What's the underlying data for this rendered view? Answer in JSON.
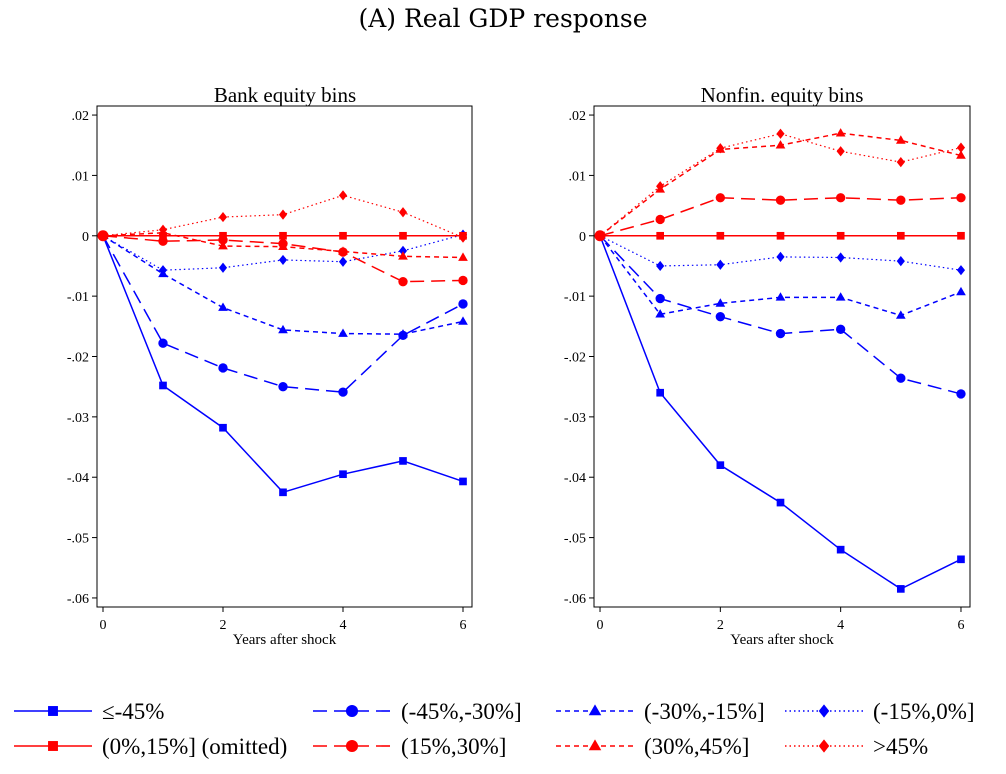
{
  "figure_title": "(A) Real GDP response",
  "chart_data": [
    {
      "type": "line",
      "title": "Bank equity bins",
      "xlabel": "Years after shock",
      "ylabel": "",
      "x": [
        0,
        1,
        2,
        3,
        4,
        5,
        6
      ],
      "xticks": [
        0,
        2,
        4,
        6
      ],
      "yticks": [
        0.02,
        0.01,
        0,
        -0.01,
        -0.02,
        -0.03,
        -0.04,
        -0.05,
        -0.06
      ],
      "ytick_labels": [
        ".02",
        ".01",
        "0",
        "-.01",
        "-.02",
        "-.03",
        "-.04",
        "-.05",
        "-.06"
      ],
      "xlim": [
        -0.1,
        6.15
      ],
      "ylim": [
        -0.0615,
        0.0215
      ],
      "series": [
        {
          "name": "≤-45%",
          "values": [
            0,
            -0.0248,
            -0.0318,
            -0.0425,
            -0.0395,
            -0.0373,
            -0.0407
          ]
        },
        {
          "name": "(-45%,-30%]",
          "values": [
            0,
            -0.0178,
            -0.0219,
            -0.025,
            -0.0259,
            -0.0165,
            -0.0113
          ]
        },
        {
          "name": "(-30%,-15%]",
          "values": [
            0,
            -0.0063,
            -0.0119,
            -0.0156,
            -0.0162,
            -0.0163,
            -0.0142
          ]
        },
        {
          "name": "(-15%,0%]",
          "values": [
            0,
            -0.0057,
            -0.0053,
            -0.004,
            -0.0043,
            -0.0025,
            0.0002
          ]
        },
        {
          "name": "(0%,15%] (omitted)",
          "values": [
            0,
            0,
            0,
            0,
            0,
            0,
            0
          ]
        },
        {
          "name": "(15%,30%]",
          "values": [
            0,
            -0.0009,
            -0.0007,
            -0.0013,
            -0.0027,
            -0.0076,
            -0.0074
          ]
        },
        {
          "name": "(30%,45%]",
          "values": [
            0,
            0.0005,
            -0.0017,
            -0.0018,
            -0.0026,
            -0.0034,
            -0.0036
          ]
        },
        {
          "name": ">45%",
          "values": [
            0,
            0.001,
            0.0031,
            0.0035,
            0.0067,
            0.0039,
            -0.0003
          ]
        }
      ]
    },
    {
      "type": "line",
      "title": "Nonfin. equity bins",
      "xlabel": "Years after shock",
      "ylabel": "",
      "x": [
        0,
        1,
        2,
        3,
        4,
        5,
        6
      ],
      "xticks": [
        0,
        2,
        4,
        6
      ],
      "yticks": [
        0.02,
        0.01,
        0,
        -0.01,
        -0.02,
        -0.03,
        -0.04,
        -0.05,
        -0.06
      ],
      "ytick_labels": [
        ".02",
        ".01",
        "0",
        "-.01",
        "-.02",
        "-.03",
        "-.04",
        "-.05",
        "-.06"
      ],
      "xlim": [
        -0.1,
        6.15
      ],
      "ylim": [
        -0.0615,
        0.0215
      ],
      "series": [
        {
          "name": "≤-45%",
          "values": [
            0,
            -0.026,
            -0.038,
            -0.0442,
            -0.052,
            -0.0585,
            -0.0536
          ]
        },
        {
          "name": "(-45%,-30%]",
          "values": [
            0,
            -0.0104,
            -0.0134,
            -0.0162,
            -0.0155,
            -0.0236,
            -0.0262
          ]
        },
        {
          "name": "(-30%,-15%]",
          "values": [
            0,
            -0.013,
            -0.0112,
            -0.0102,
            -0.0102,
            -0.0132,
            -0.0093
          ]
        },
        {
          "name": "(-15%,0%]",
          "values": [
            0,
            -0.005,
            -0.0048,
            -0.0035,
            -0.0036,
            -0.0042,
            -0.0057
          ]
        },
        {
          "name": "(0%,15%] (omitted)",
          "values": [
            0,
            0,
            0,
            0,
            0,
            0,
            0
          ]
        },
        {
          "name": "(15%,30%]",
          "values": [
            0,
            0.0027,
            0.0063,
            0.0059,
            0.0063,
            0.0059,
            0.0063
          ]
        },
        {
          "name": "(30%,45%]",
          "values": [
            0,
            0.0077,
            0.0143,
            0.015,
            0.017,
            0.0158,
            0.0133
          ]
        },
        {
          "name": ">45%",
          "values": [
            0,
            0.0082,
            0.0145,
            0.0169,
            0.014,
            0.0122,
            0.0146
          ]
        }
      ]
    }
  ],
  "legend": {
    "placement": "bottom",
    "entries": [
      "≤-45%",
      "(-45%,-30%]",
      "(-30%,-15%]",
      "(-15%,0%]",
      "(0%,15%] (omitted)",
      "(15%,30%]",
      "(30%,45%]",
      ">45%"
    ]
  },
  "colors": {
    "blue": "#0000ff",
    "red": "#ff0000",
    "axis": "#000000"
  },
  "series_styles": [
    {
      "color": "#0000ff",
      "dash": "solid",
      "marker": "square"
    },
    {
      "color": "#0000ff",
      "dash": "longdash",
      "marker": "circle"
    },
    {
      "color": "#0000ff",
      "dash": "shortdash",
      "marker": "triangle"
    },
    {
      "color": "#0000ff",
      "dash": "dot",
      "marker": "diamond"
    },
    {
      "color": "#ff0000",
      "dash": "solid",
      "marker": "square"
    },
    {
      "color": "#ff0000",
      "dash": "longdash",
      "marker": "circle"
    },
    {
      "color": "#ff0000",
      "dash": "shortdash",
      "marker": "triangle"
    },
    {
      "color": "#ff0000",
      "dash": "dot",
      "marker": "diamond"
    }
  ]
}
